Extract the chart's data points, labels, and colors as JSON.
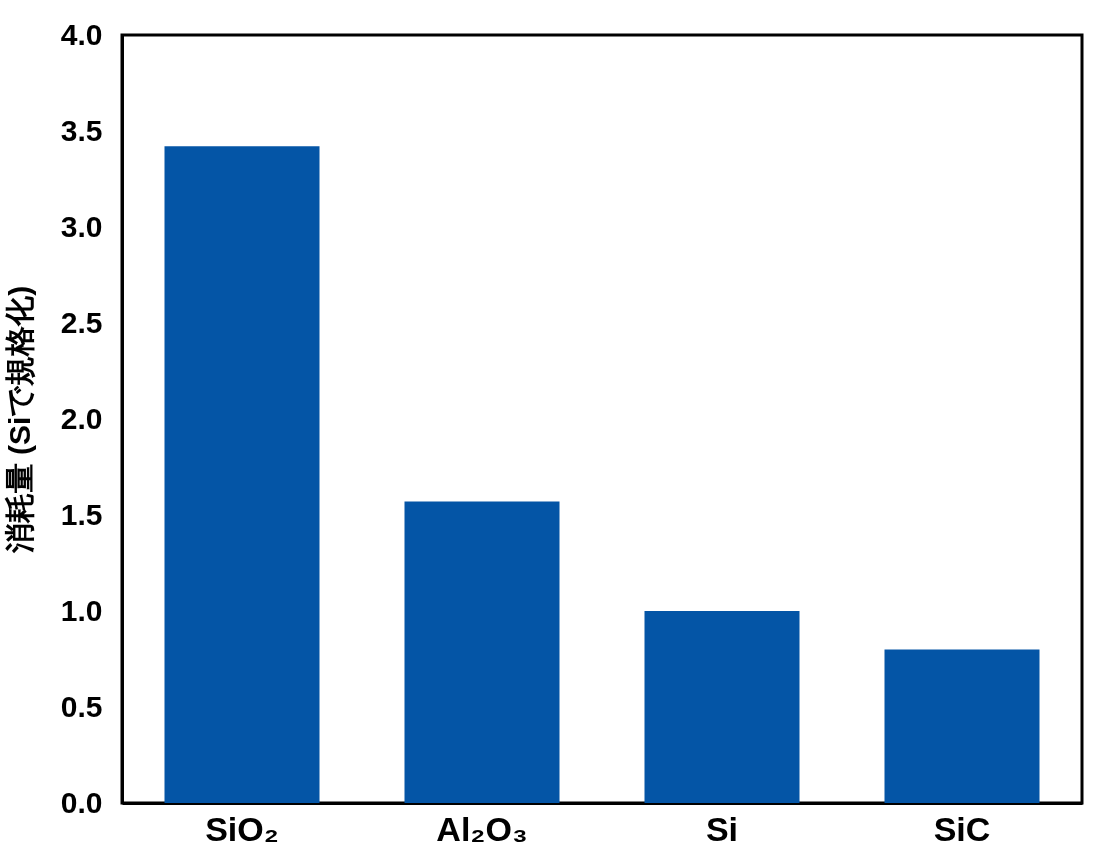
{
  "chart_data": {
    "type": "bar",
    "ylabel": "消耗量 (Siで規格化)",
    "categories": [
      "SiO₂",
      "Al₂O₃",
      "Si",
      "SiC"
    ],
    "values": [
      3.42,
      1.57,
      1.0,
      0.8
    ],
    "color": "#0455a6",
    "ylim": [
      0,
      4.0
    ],
    "yticks": [
      {
        "value": 0,
        "label": "0.0"
      },
      {
        "value": 0.5,
        "label": "0.5"
      },
      {
        "value": 1.0,
        "label": "1.0"
      },
      {
        "value": 1.5,
        "label": "1.5"
      },
      {
        "value": 2.0,
        "label": "2.0"
      },
      {
        "value": 2.5,
        "label": "2.5"
      },
      {
        "value": 3.0,
        "label": "3.0"
      },
      {
        "value": 3.5,
        "label": "3.5"
      },
      {
        "value": 4.0,
        "label": "4.0"
      }
    ],
    "grid": false
  }
}
